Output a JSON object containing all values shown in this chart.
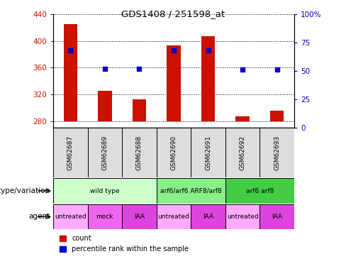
{
  "title": "GDS1408 / 251598_at",
  "samples": [
    "GSM62687",
    "GSM62689",
    "GSM62688",
    "GSM62690",
    "GSM62691",
    "GSM62692",
    "GSM62693"
  ],
  "count_values": [
    425,
    325,
    312,
    393,
    407,
    287,
    296
  ],
  "count_base": 280,
  "percentile_values": [
    68,
    52,
    52,
    68,
    68,
    51,
    51
  ],
  "ylim_left": [
    270,
    440
  ],
  "ylim_right": [
    0,
    100
  ],
  "yticks_left": [
    280,
    320,
    360,
    400,
    440
  ],
  "yticks_right": [
    0,
    25,
    50,
    75,
    100
  ],
  "bar_color": "#cc1100",
  "dot_color": "#0000cc",
  "bar_width": 0.4,
  "genotype_groups": [
    {
      "label": "wild type",
      "cols": [
        0,
        1,
        2
      ],
      "color": "#ccffcc"
    },
    {
      "label": "arf6/arf6 ARF8/arf8",
      "cols": [
        3,
        4
      ],
      "color": "#88ee88"
    },
    {
      "label": "arf6 arf8",
      "cols": [
        5,
        6
      ],
      "color": "#44cc44"
    }
  ],
  "agent_groups": [
    {
      "label": "untreated",
      "cols": [
        0
      ],
      "color": "#ffaaff"
    },
    {
      "label": "mock",
      "cols": [
        1
      ],
      "color": "#ee66ee"
    },
    {
      "label": "IAA",
      "cols": [
        2
      ],
      "color": "#dd44dd"
    },
    {
      "label": "untreated",
      "cols": [
        3
      ],
      "color": "#ffaaff"
    },
    {
      "label": "IAA",
      "cols": [
        4
      ],
      "color": "#dd44dd"
    },
    {
      "label": "untreated",
      "cols": [
        5
      ],
      "color": "#ffaaff"
    },
    {
      "label": "IAA",
      "cols": [
        6
      ],
      "color": "#dd44dd"
    }
  ],
  "legend_count_label": "count",
  "legend_percentile_label": "percentile rank within the sample",
  "left_label": "genotype/variation",
  "agent_label": "agent",
  "tick_color_left": "#cc1100",
  "tick_color_right": "#0000cc",
  "sample_box_color": "#dddddd"
}
